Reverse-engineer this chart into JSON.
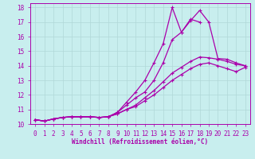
{
  "xlabel": "Windchill (Refroidissement éolien,°C)",
  "ylabel": "",
  "xlim": [
    -0.5,
    23.5
  ],
  "ylim": [
    10,
    18.3
  ],
  "yticks": [
    10,
    11,
    12,
    13,
    14,
    15,
    16,
    17,
    18
  ],
  "xticks": [
    0,
    1,
    2,
    3,
    4,
    5,
    6,
    7,
    8,
    9,
    10,
    11,
    12,
    13,
    14,
    15,
    16,
    17,
    18,
    19,
    20,
    21,
    22,
    23
  ],
  "bg_color": "#c8eeee",
  "grid_color": "#b0d8d8",
  "line_color": "#aa00aa",
  "line1_x": [
    0,
    1,
    2,
    3,
    4,
    5,
    6,
    7,
    8,
    9,
    10,
    11,
    12,
    13,
    14,
    15,
    16,
    17,
    18,
    19,
    20,
    21,
    22,
    23
  ],
  "line1_y": [
    10.3,
    10.2,
    10.35,
    10.45,
    10.5,
    10.5,
    10.5,
    10.45,
    10.5,
    10.8,
    11.5,
    12.2,
    13.0,
    14.2,
    15.5,
    18.0,
    16.3,
    17.2,
    17.0,
    null,
    null,
    null,
    null,
    null
  ],
  "line2_x": [
    0,
    1,
    2,
    3,
    4,
    5,
    6,
    7,
    8,
    9,
    10,
    11,
    12,
    13,
    14,
    15,
    16,
    17,
    18,
    19,
    20,
    21,
    22,
    23
  ],
  "line2_y": [
    10.3,
    10.2,
    10.35,
    10.45,
    10.5,
    10.5,
    10.5,
    10.45,
    10.5,
    10.8,
    11.3,
    11.8,
    12.2,
    13.0,
    14.2,
    15.8,
    16.3,
    17.1,
    17.8,
    17.0,
    14.5,
    14.45,
    14.2,
    14.0
  ],
  "line3_x": [
    0,
    1,
    2,
    3,
    4,
    5,
    6,
    7,
    8,
    9,
    10,
    11,
    12,
    13,
    14,
    15,
    16,
    17,
    18,
    19,
    20,
    21,
    22,
    23
  ],
  "line3_y": [
    10.3,
    10.2,
    10.35,
    10.45,
    10.5,
    10.5,
    10.5,
    10.45,
    10.5,
    10.7,
    11.0,
    11.3,
    11.8,
    12.3,
    12.9,
    13.5,
    13.9,
    14.3,
    14.6,
    14.55,
    14.45,
    14.3,
    14.1,
    14.0
  ],
  "line4_x": [
    0,
    1,
    2,
    3,
    4,
    5,
    6,
    7,
    8,
    9,
    10,
    11,
    12,
    13,
    14,
    15,
    16,
    17,
    18,
    19,
    20,
    21,
    22,
    23
  ],
  "line4_y": [
    10.3,
    10.2,
    10.35,
    10.45,
    10.5,
    10.5,
    10.5,
    10.45,
    10.5,
    10.7,
    11.0,
    11.2,
    11.6,
    12.0,
    12.5,
    13.0,
    13.4,
    13.8,
    14.1,
    14.2,
    14.0,
    13.8,
    13.6,
    13.9
  ]
}
